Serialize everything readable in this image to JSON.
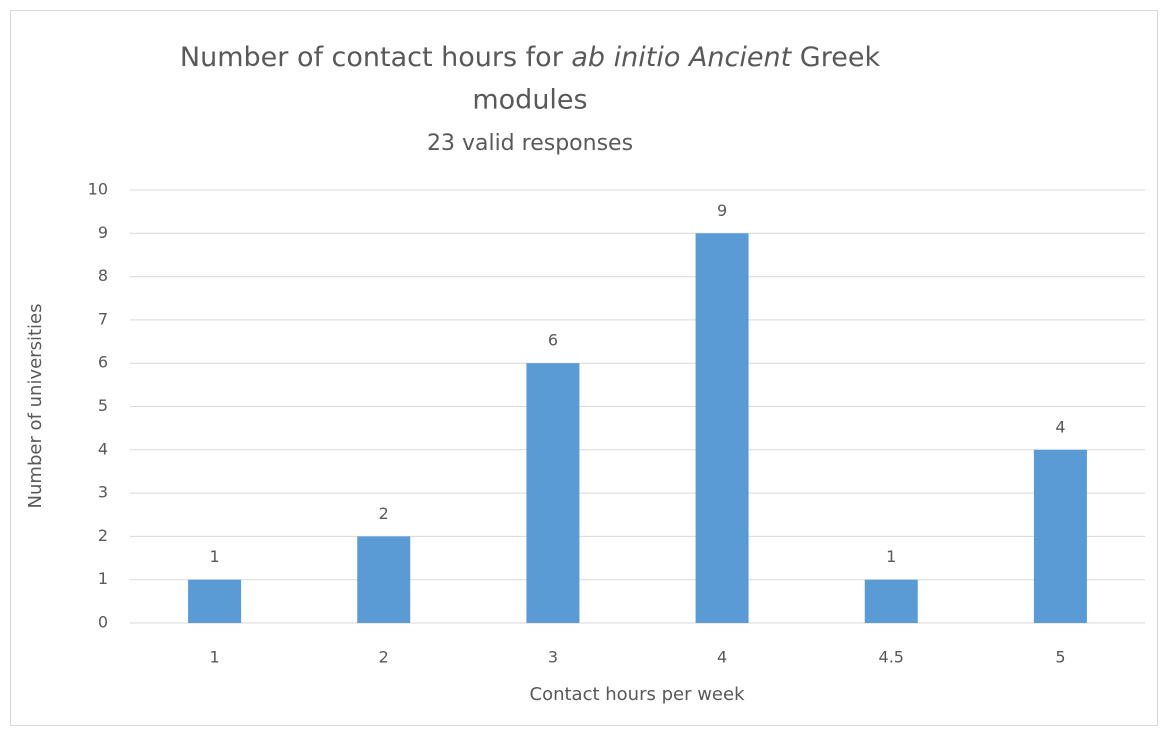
{
  "chart_data": {
    "type": "bar",
    "title": [
      "Number of contact hours for ",
      "ab initio Ancient",
      " Greek",
      "modules"
    ],
    "subtitle": "23 valid responses",
    "x_label": "Contact hours per week",
    "y_label": "Number of universities",
    "categories": [
      "1",
      "2",
      "3",
      "4",
      "4.5",
      "5"
    ],
    "values": [
      1,
      2,
      6,
      9,
      1,
      4
    ],
    "color": "#5b9bd5",
    "ylim": [
      0,
      10
    ],
    "yticks": [
      0,
      1,
      2,
      3,
      4,
      5,
      6,
      7,
      8,
      9,
      10
    ],
    "grid": true
  }
}
